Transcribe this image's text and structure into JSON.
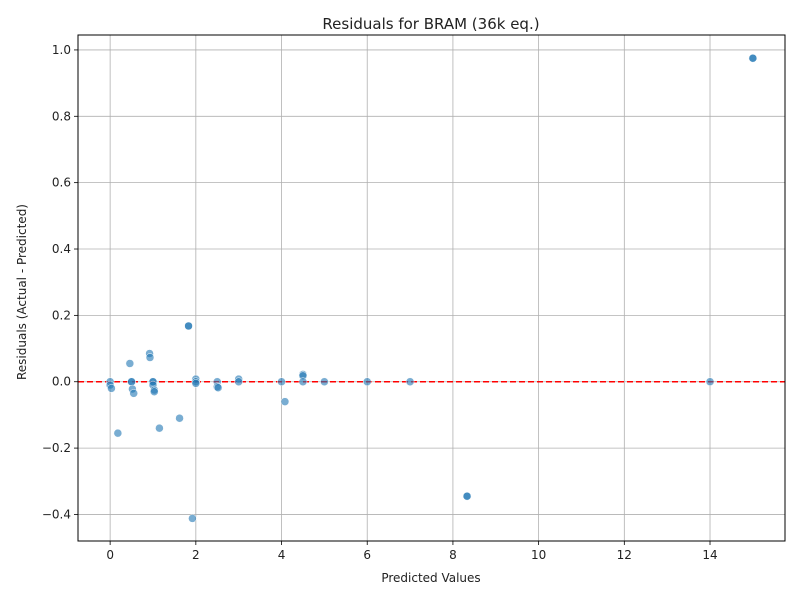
{
  "chart_data": {
    "type": "scatter",
    "title": "Residuals for BRAM (36k eq.)",
    "xlabel": "Predicted Values",
    "ylabel": "Residuals (Actual - Predicted)",
    "xlim": [
      -0.75,
      15.75
    ],
    "ylim": [
      -0.48,
      1.045
    ],
    "x_ticks": [
      0,
      2,
      4,
      6,
      8,
      10,
      12,
      14
    ],
    "x_tick_labels": [
      "0",
      "2",
      "4",
      "6",
      "8",
      "10",
      "12",
      "14"
    ],
    "y_ticks": [
      -0.4,
      -0.2,
      0.0,
      0.2,
      0.4,
      0.6,
      0.8,
      1.0
    ],
    "y_tick_labels": [
      "−0.4",
      "−0.2",
      "0.0",
      "0.2",
      "0.4",
      "0.6",
      "0.8",
      "1.0"
    ],
    "grid": true,
    "reference_line": {
      "y": 0,
      "color": "#ff0000",
      "style": "dashed"
    },
    "point_color": "#1f77b4",
    "points": [
      {
        "x": 15.0,
        "y": 0.975
      },
      {
        "x": 15.0,
        "y": 0.975
      },
      {
        "x": 1.83,
        "y": 0.168
      },
      {
        "x": 1.83,
        "y": 0.168
      },
      {
        "x": 0.92,
        "y": 0.085
      },
      {
        "x": 0.93,
        "y": 0.073
      },
      {
        "x": 0.46,
        "y": 0.055
      },
      {
        "x": 4.5,
        "y": 0.022
      },
      {
        "x": 4.5,
        "y": 0.018
      },
      {
        "x": 2.0,
        "y": 0.008
      },
      {
        "x": 3.0,
        "y": 0.008
      },
      {
        "x": 0.0,
        "y": 0.0
      },
      {
        "x": 0.5,
        "y": 0.0
      },
      {
        "x": 0.5,
        "y": 0.0
      },
      {
        "x": 1.0,
        "y": 0.0
      },
      {
        "x": 1.0,
        "y": 0.0
      },
      {
        "x": 2.0,
        "y": 0.0
      },
      {
        "x": 2.5,
        "y": 0.0
      },
      {
        "x": 3.0,
        "y": 0.0
      },
      {
        "x": 4.0,
        "y": 0.0
      },
      {
        "x": 4.5,
        "y": 0.0
      },
      {
        "x": 5.0,
        "y": 0.0
      },
      {
        "x": 6.0,
        "y": 0.0
      },
      {
        "x": 7.0,
        "y": 0.0
      },
      {
        "x": 14.0,
        "y": 0.0
      },
      {
        "x": 2.0,
        "y": -0.005
      },
      {
        "x": 1.0,
        "y": -0.01
      },
      {
        "x": 0.0,
        "y": -0.01
      },
      {
        "x": 2.5,
        "y": -0.015
      },
      {
        "x": 2.52,
        "y": -0.018
      },
      {
        "x": 0.03,
        "y": -0.02
      },
      {
        "x": 0.52,
        "y": -0.022
      },
      {
        "x": 1.03,
        "y": -0.025
      },
      {
        "x": 1.03,
        "y": -0.03
      },
      {
        "x": 0.55,
        "y": -0.035
      },
      {
        "x": 4.08,
        "y": -0.06
      },
      {
        "x": 1.62,
        "y": -0.11
      },
      {
        "x": 1.15,
        "y": -0.14
      },
      {
        "x": 0.18,
        "y": -0.155
      },
      {
        "x": 8.33,
        "y": -0.345
      },
      {
        "x": 8.33,
        "y": -0.345
      },
      {
        "x": 1.92,
        "y": -0.412
      }
    ]
  }
}
